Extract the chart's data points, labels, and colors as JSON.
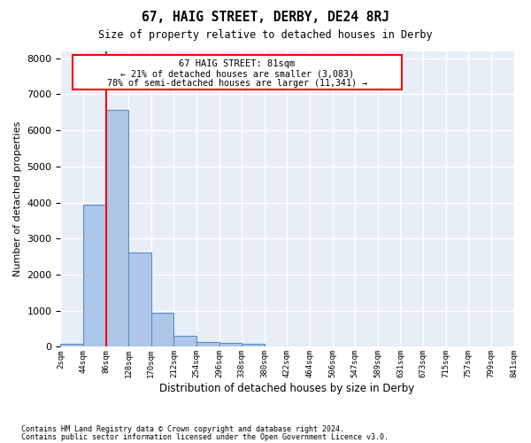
{
  "title": "67, HAIG STREET, DERBY, DE24 8RJ",
  "subtitle": "Size of property relative to detached houses in Derby",
  "xlabel": "Distribution of detached houses by size in Derby",
  "ylabel": "Number of detached properties",
  "footnote1": "Contains HM Land Registry data © Crown copyright and database right 2024.",
  "footnote2": "Contains public sector information licensed under the Open Government Licence v3.0.",
  "bar_values": [
    80,
    3950,
    6570,
    2620,
    940,
    295,
    125,
    100,
    80,
    0,
    0,
    0,
    0,
    0,
    0,
    0,
    0,
    0,
    0,
    0
  ],
  "bin_labels": [
    "2sqm",
    "44sqm",
    "86sqm",
    "128sqm",
    "170sqm",
    "212sqm",
    "254sqm",
    "296sqm",
    "338sqm",
    "380sqm",
    "422sqm",
    "464sqm",
    "506sqm",
    "547sqm",
    "589sqm",
    "631sqm",
    "673sqm",
    "715sqm",
    "757sqm",
    "799sqm",
    "841sqm"
  ],
  "bar_color": "#aec6e8",
  "bar_edge_color": "#5a8fc0",
  "bg_color": "#e8eef8",
  "grid_color": "#ffffff",
  "annotation_line": "67 HAIG STREET: 81sqm",
  "annotation_pct1": "← 21% of detached houses are smaller (3,083)",
  "annotation_pct2": "78% of semi-detached houses are larger (11,341) →",
  "ylim": [
    0,
    8200
  ],
  "yticks": [
    0,
    1000,
    2000,
    3000,
    4000,
    5000,
    6000,
    7000,
    8000
  ]
}
